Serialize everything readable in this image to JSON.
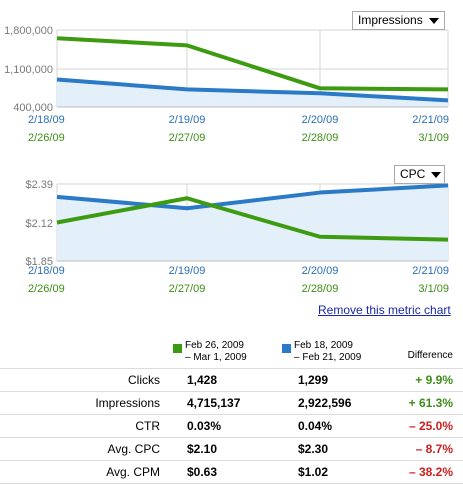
{
  "colors": {
    "period_a": "#2b7ac8",
    "period_b": "#3d9b11",
    "area_fill": "#e3f0fa",
    "grid": "#d6d6d6"
  },
  "charts": [
    {
      "metric_label": "Impressions",
      "y_ticks": [
        "1,800,000",
        "1,100,000",
        "400,000"
      ],
      "ylim": [
        400000,
        1800000
      ],
      "x_dates_a": [
        "2/18/09",
        "2/19/09",
        "2/20/09",
        "2/21/09"
      ],
      "x_dates_b": [
        "2/26/09",
        "2/27/09",
        "2/28/09",
        "3/1/09"
      ],
      "series_a": [
        900000,
        720000,
        650000,
        520000
      ],
      "series_b": [
        1650000,
        1520000,
        740000,
        720000
      ]
    },
    {
      "metric_label": "CPC",
      "y_ticks": [
        "$2.39",
        "$2.12",
        "$1.85"
      ],
      "ylim": [
        1.85,
        2.39
      ],
      "x_dates_a": [
        "2/18/09",
        "2/19/09",
        "2/20/09",
        "2/21/09"
      ],
      "x_dates_b": [
        "2/26/09",
        "2/27/09",
        "2/28/09",
        "3/1/09"
      ],
      "series_a": [
        2.3,
        2.22,
        2.33,
        2.38
      ],
      "series_b": [
        2.12,
        2.29,
        2.02,
        2.0
      ]
    }
  ],
  "remove_link": "Remove this metric chart",
  "legend": {
    "period_b_line1": "Feb 26, 2009",
    "period_b_line2": "– Mar 1, 2009",
    "period_a_line1": "Feb 18, 2009",
    "period_a_line2": "– Feb 21, 2009",
    "difference": "Difference"
  },
  "rows": [
    {
      "label": "Clicks",
      "b": "1,428",
      "a": "1,299",
      "diff": "+ 9.9%",
      "trend": "pos"
    },
    {
      "label": "Impressions",
      "b": "4,715,137",
      "a": "2,922,596",
      "diff": "+ 61.3%",
      "trend": "pos"
    },
    {
      "label": "CTR",
      "b": "0.03%",
      "a": "0.04%",
      "diff": "– 25.0%",
      "trend": "neg"
    },
    {
      "label": "Avg. CPC",
      "b": "$2.10",
      "a": "$2.30",
      "diff": "– 8.7%",
      "trend": "neg"
    },
    {
      "label": "Avg. CPM",
      "b": "$0.63",
      "a": "$1.02",
      "diff": "– 38.2%",
      "trend": "neg"
    }
  ]
}
